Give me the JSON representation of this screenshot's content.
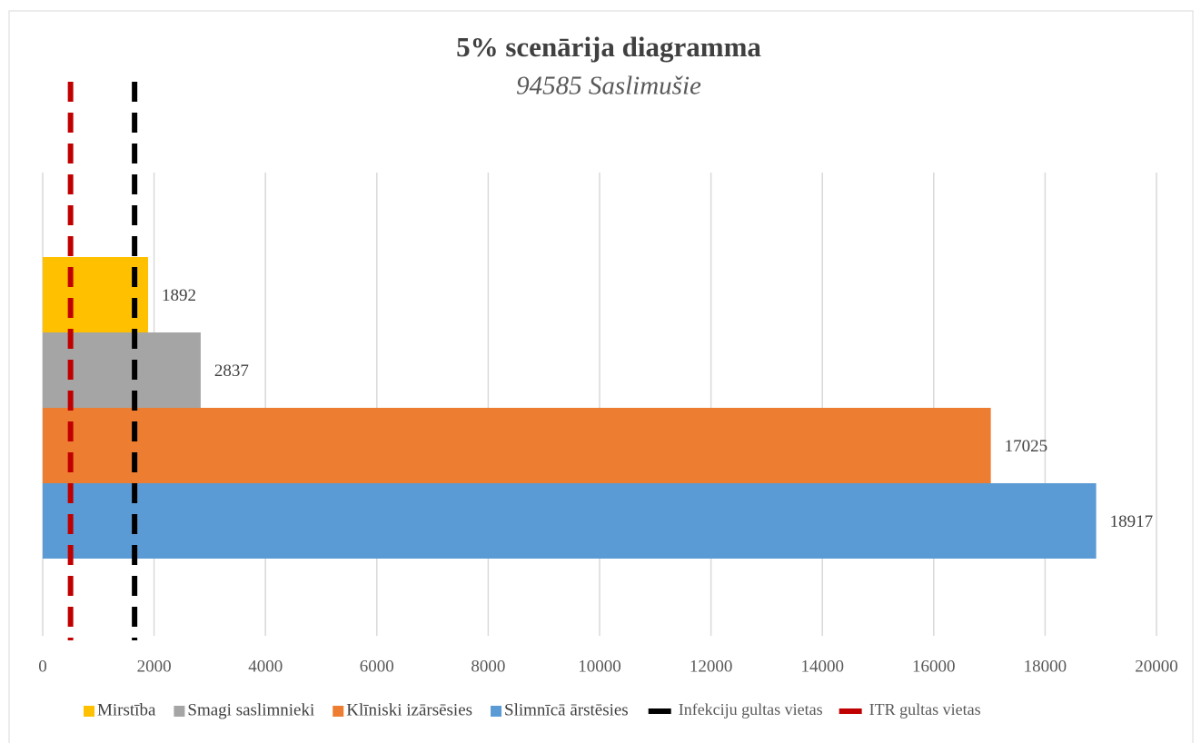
{
  "chart_data": {
    "type": "bar",
    "orientation": "horizontal",
    "title": "5% scenārija diagramma",
    "subtitle": "94585 Saslimušie",
    "series": [
      {
        "name": "Mirstība",
        "color": "#ffc000",
        "values": [
          1892
        ]
      },
      {
        "name": "Smagi saslimnieki",
        "color": "#a5a5a5",
        "values": [
          2837
        ]
      },
      {
        "name": "Klīniski izārsēsies",
        "color": "#ed7d31",
        "values": [
          17025
        ]
      },
      {
        "name": "Slimnīcā ārstēsies",
        "color": "#5b9bd5",
        "values": [
          18917
        ]
      }
    ],
    "reference_lines": [
      {
        "name": "Infekciju gultas vietas",
        "color": "#000000",
        "value": 1650
      },
      {
        "name": "ITR gultas vietas",
        "color": "#c00000",
        "value": 500
      }
    ],
    "xlim": [
      0,
      20000
    ],
    "xticks": [
      0,
      2000,
      4000,
      6000,
      8000,
      10000,
      12000,
      14000,
      16000,
      18000,
      20000
    ],
    "grid": true,
    "legend": "bottom"
  }
}
